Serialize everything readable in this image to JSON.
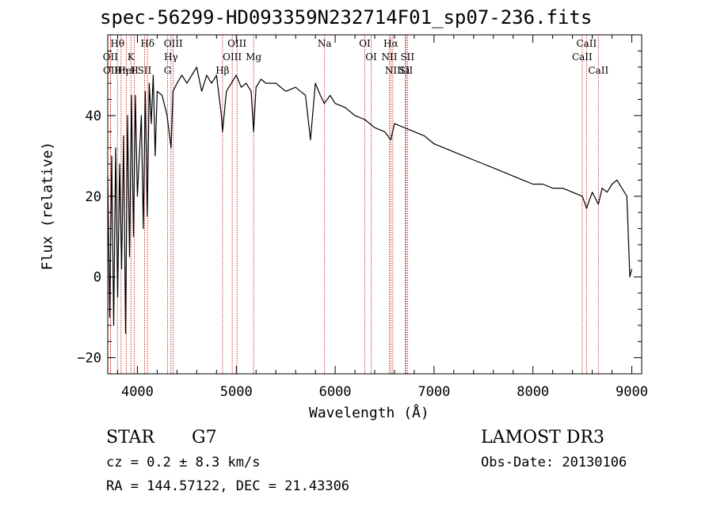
{
  "chart_data": {
    "type": "line",
    "title": "spec-56299-HD093359N232714F01_sp07-236.fits",
    "xlabel": "Wavelength (Å)",
    "ylabel": "Flux (relative)",
    "xlim": [
      3700,
      9100
    ],
    "ylim": [
      -24,
      60
    ],
    "xticks": [
      4000,
      5000,
      6000,
      7000,
      8000,
      9000
    ],
    "yticks": [
      -20,
      0,
      20,
      40
    ],
    "series": [
      {
        "name": "spectrum",
        "x": [
          3700,
          3720,
          3740,
          3760,
          3780,
          3800,
          3820,
          3840,
          3860,
          3880,
          3900,
          3920,
          3940,
          3960,
          3980,
          4000,
          4020,
          4040,
          4060,
          4080,
          4100,
          4120,
          4140,
          4160,
          4180,
          4200,
          4250,
          4300,
          4340,
          4360,
          4400,
          4450,
          4500,
          4550,
          4600,
          4650,
          4700,
          4750,
          4800,
          4850,
          4861,
          4900,
          4950,
          5000,
          5050,
          5100,
          5150,
          5175,
          5200,
          5250,
          5300,
          5400,
          5500,
          5600,
          5700,
          5750,
          5800,
          5850,
          5890,
          5950,
          6000,
          6100,
          6200,
          6300,
          6400,
          6500,
          6563,
          6600,
          6700,
          6800,
          6900,
          7000,
          7100,
          7200,
          7300,
          7400,
          7500,
          7600,
          7700,
          7800,
          7900,
          8000,
          8100,
          8200,
          8300,
          8400,
          8500,
          8542,
          8600,
          8662,
          8700,
          8750,
          8800,
          8850,
          8900,
          8950,
          8980,
          9000
        ],
        "values": [
          25,
          -10,
          30,
          -12,
          32,
          -5,
          28,
          2,
          35,
          -14,
          40,
          5,
          45,
          10,
          45,
          20,
          30,
          40,
          12,
          46,
          15,
          48,
          38,
          50,
          30,
          46,
          45,
          40,
          32,
          46,
          48,
          50,
          48,
          50,
          52,
          46,
          50,
          48,
          50,
          40,
          36,
          46,
          48,
          50,
          47,
          48,
          46,
          36,
          47,
          49,
          48,
          48,
          46,
          47,
          45,
          34,
          48,
          45,
          43,
          45,
          43,
          42,
          40,
          39,
          37,
          36,
          34,
          38,
          37,
          36,
          35,
          33,
          32,
          31,
          30,
          29,
          28,
          27,
          26,
          25,
          24,
          23,
          23,
          22,
          22,
          21,
          20,
          17,
          21,
          18,
          22,
          21,
          23,
          24,
          22,
          20,
          0,
          2
        ]
      }
    ],
    "line_markers": [
      {
        "label": "Hθ",
        "wavelength": 3798
      },
      {
        "label": "OII",
        "wavelength": 3727
      },
      {
        "label": "OII",
        "wavelength": 3729
      },
      {
        "label": "Hη",
        "wavelength": 3835
      },
      {
        "label": "K",
        "wavelength": 3934
      },
      {
        "label": "HeI",
        "wavelength": 3889
      },
      {
        "label": "H",
        "wavelength": 3969
      },
      {
        "label": "Hδ",
        "wavelength": 4102
      },
      {
        "label": "SII",
        "wavelength": 4072
      },
      {
        "label": "OIII",
        "wavelength": 4363
      },
      {
        "label": "Hγ",
        "wavelength": 4340
      },
      {
        "label": "G",
        "wavelength": 4305
      },
      {
        "label": "OIII",
        "wavelength": 5007
      },
      {
        "label": "OIII",
        "wavelength": 4959
      },
      {
        "label": "Hβ",
        "wavelength": 4861
      },
      {
        "label": "Mg",
        "wavelength": 5175
      },
      {
        "label": "Na",
        "wavelength": 5893
      },
      {
        "label": "OI",
        "wavelength": 6300
      },
      {
        "label": "OI",
        "wavelength": 6364
      },
      {
        "label": "Hα",
        "wavelength": 6563
      },
      {
        "label": "NII",
        "wavelength": 6548
      },
      {
        "label": "NII",
        "wavelength": 6583
      },
      {
        "label": "SII",
        "wavelength": 6716
      },
      {
        "label": "SII",
        "wavelength": 6731
      },
      {
        "label": "Li",
        "wavelength": 6708
      },
      {
        "label": "CaII",
        "wavelength": 8542
      },
      {
        "label": "CaII",
        "wavelength": 8498
      },
      {
        "label": "CaII",
        "wavelength": 8662
      }
    ]
  },
  "info": {
    "object_class": "STAR",
    "subclass": "G7",
    "survey": "LAMOST DR3",
    "cz": "cz = 0.2 ± 8.3 km/s",
    "obs_date": "Obs-Date: 20130106",
    "coords": "RA = 144.57122, DEC =  21.43306"
  },
  "colors": {
    "spectrum": "#000000",
    "marker": "#c00000",
    "axes": "#000000"
  }
}
